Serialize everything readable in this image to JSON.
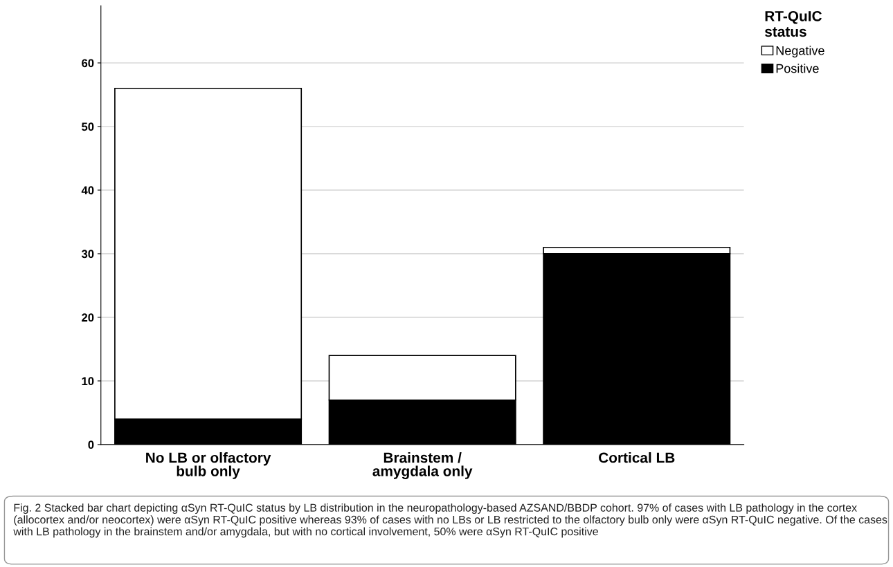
{
  "chart_data": {
    "type": "bar",
    "stacked": true,
    "categories": [
      "No LB or olfactory\nbulb only",
      "Brainstem /\namygdala only",
      "Cortical LB"
    ],
    "series": [
      {
        "name": "Positive",
        "color": "#000000",
        "values": [
          4,
          7,
          30
        ]
      },
      {
        "name": "Negative",
        "color": "#ffffff",
        "values": [
          52,
          7,
          1
        ]
      }
    ],
    "ylim": [
      0,
      69
    ],
    "yticks": [
      0,
      10,
      20,
      30,
      40,
      50,
      60
    ],
    "grid": "y",
    "legend": "top right",
    "legend_title": "RT-QuIC\nstatus",
    "annotations": [
      "Fig. 2 Stacked bar chart depicting αSyn RT-QuIC status by LB distribution in the neuropathology-based AZSAND/BBDP cohort. 97% of cases with LB pathology in the cortex (allocortex and/or neocortex) were αSyn RT-QuIC positive whereas 93% of cases with no LBs or LB restricted to the olfactory bulb only were αSyn RT-QuIC negative. Of the cases with LB pathology in the brainstem and/or amygdala, but with no cortical involvement, 50% were αSyn RT-QuIC positive"
    ]
  }
}
